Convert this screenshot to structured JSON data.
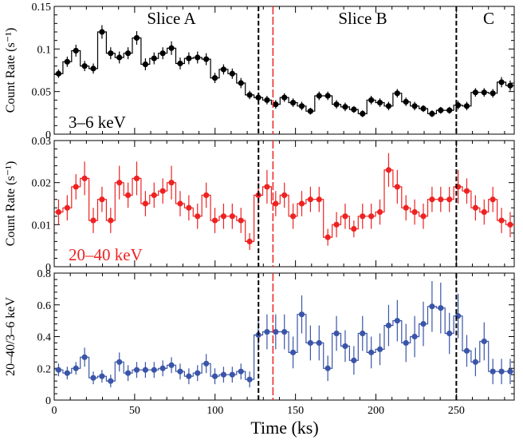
{
  "chart_data": [
    {
      "type": "step",
      "ylabel": "Count Rate (s⁻¹)",
      "ylim": [
        0,
        0.15
      ],
      "yticks": [
        "0",
        "0.05",
        "0.1",
        "0.15"
      ],
      "band_label": "3–6 keV",
      "color": "#000000",
      "slice_labels": [
        "Slice A",
        "Slice B",
        "C"
      ],
      "series": [
        {
          "x": [
            2.7,
            8.1,
            13.5,
            18.9,
            24.3,
            29.7,
            35.1,
            40.5,
            45.9,
            51.3,
            56.7,
            62.1,
            67.5,
            72.9,
            78.3,
            83.7,
            89.1,
            94.5,
            99.9,
            105.3,
            110.7,
            116.1,
            121.5,
            126.9,
            132.3,
            137.7,
            143.1,
            148.5,
            153.9,
            159.3,
            164.7,
            170.1,
            175.5,
            180.9,
            186.3,
            191.7,
            197.1,
            202.5,
            207.9,
            213.3,
            218.7,
            224.1,
            229.5,
            234.9,
            240.3,
            245.7,
            251.1,
            256.5,
            261.9,
            267.3,
            272.7,
            278.1,
            283.5
          ],
          "y": [
            0.071,
            0.085,
            0.098,
            0.08,
            0.077,
            0.12,
            0.095,
            0.09,
            0.095,
            0.113,
            0.082,
            0.089,
            0.095,
            0.101,
            0.083,
            0.089,
            0.09,
            0.088,
            0.066,
            0.076,
            0.071,
            0.06,
            0.046,
            0.043,
            0.04,
            0.035,
            0.043,
            0.037,
            0.033,
            0.027,
            0.045,
            0.045,
            0.035,
            0.032,
            0.029,
            0.024,
            0.04,
            0.037,
            0.033,
            0.048,
            0.038,
            0.033,
            0.03,
            0.024,
            0.028,
            0.028,
            0.034,
            0.033,
            0.049,
            0.049,
            0.048,
            0.061,
            0.057
          ],
          "err": [
            0.005,
            0.006,
            0.007,
            0.006,
            0.006,
            0.008,
            0.007,
            0.007,
            0.007,
            0.008,
            0.007,
            0.007,
            0.007,
            0.008,
            0.007,
            0.007,
            0.007,
            0.007,
            0.006,
            0.006,
            0.006,
            0.006,
            0.005,
            0.005,
            0.005,
            0.005,
            0.005,
            0.005,
            0.005,
            0.004,
            0.005,
            0.005,
            0.005,
            0.005,
            0.004,
            0.004,
            0.005,
            0.005,
            0.005,
            0.005,
            0.005,
            0.005,
            0.004,
            0.004,
            0.004,
            0.004,
            0.005,
            0.005,
            0.005,
            0.005,
            0.005,
            0.006,
            0.006
          ]
        }
      ]
    },
    {
      "type": "step",
      "ylabel": "Count Rate (s⁻¹)",
      "ylim": [
        0,
        0.03
      ],
      "yticks": [
        "0",
        "0.01",
        "0.02",
        "0.03"
      ],
      "band_label": "20–40 keV",
      "color": "#ee2222",
      "series": [
        {
          "x": [
            2.7,
            8.1,
            13.5,
            18.9,
            24.3,
            29.7,
            35.1,
            40.5,
            45.9,
            51.3,
            56.7,
            62.1,
            67.5,
            72.9,
            78.3,
            83.7,
            89.1,
            94.5,
            99.9,
            105.3,
            110.7,
            116.1,
            121.5,
            126.9,
            132.3,
            137.7,
            143.1,
            148.5,
            153.9,
            159.3,
            164.7,
            170.1,
            175.5,
            180.9,
            186.3,
            191.7,
            197.1,
            202.5,
            207.9,
            213.3,
            218.7,
            224.1,
            229.5,
            234.9,
            240.3,
            245.7,
            251.1,
            256.5,
            261.9,
            267.3,
            272.7,
            278.1,
            283.5
          ],
          "y": [
            0.013,
            0.014,
            0.019,
            0.021,
            0.011,
            0.016,
            0.011,
            0.02,
            0.017,
            0.021,
            0.015,
            0.017,
            0.018,
            0.02,
            0.015,
            0.014,
            0.012,
            0.017,
            0.011,
            0.012,
            0.012,
            0.011,
            0.006,
            0.017,
            0.019,
            0.015,
            0.017,
            0.012,
            0.015,
            0.016,
            0.016,
            0.007,
            0.01,
            0.012,
            0.009,
            0.012,
            0.012,
            0.013,
            0.023,
            0.019,
            0.014,
            0.013,
            0.012,
            0.016,
            0.016,
            0.016,
            0.019,
            0.018,
            0.014,
            0.013,
            0.016,
            0.011,
            0.01
          ],
          "err": [
            0.003,
            0.003,
            0.003,
            0.004,
            0.003,
            0.003,
            0.003,
            0.004,
            0.003,
            0.004,
            0.003,
            0.003,
            0.003,
            0.004,
            0.003,
            0.003,
            0.003,
            0.003,
            0.003,
            0.003,
            0.003,
            0.003,
            0.002,
            0.003,
            0.004,
            0.003,
            0.003,
            0.003,
            0.003,
            0.003,
            0.003,
            0.002,
            0.003,
            0.003,
            0.002,
            0.003,
            0.003,
            0.003,
            0.004,
            0.004,
            0.003,
            0.003,
            0.003,
            0.003,
            0.003,
            0.003,
            0.004,
            0.003,
            0.003,
            0.003,
            0.003,
            0.003,
            0.003
          ]
        }
      ]
    },
    {
      "type": "step",
      "ylabel": "20–40/3–6 keV",
      "ylim": [
        0,
        0.8
      ],
      "yticks": [
        "0",
        "0.2",
        "0.4",
        "0.6",
        "0.8"
      ],
      "color": "#3a55a8",
      "xlabel": "Time (ks)",
      "xlim": [
        0,
        286
      ],
      "xticks": [
        "0",
        "50",
        "100",
        "150",
        "200",
        "250"
      ],
      "series": [
        {
          "x": [
            2.7,
            8.1,
            13.5,
            18.9,
            24.3,
            29.7,
            35.1,
            40.5,
            45.9,
            51.3,
            56.7,
            62.1,
            67.5,
            72.9,
            78.3,
            83.7,
            89.1,
            94.5,
            99.9,
            105.3,
            110.7,
            116.1,
            121.5,
            126.9,
            132.3,
            137.7,
            143.1,
            148.5,
            153.9,
            159.3,
            164.7,
            170.1,
            175.5,
            180.9,
            186.3,
            191.7,
            197.1,
            202.5,
            207.9,
            213.3,
            218.7,
            224.1,
            229.5,
            234.9,
            240.3,
            245.7,
            251.1,
            256.5,
            261.9,
            267.3,
            272.7,
            278.1,
            283.5
          ],
          "y": [
            0.19,
            0.17,
            0.2,
            0.27,
            0.14,
            0.15,
            0.12,
            0.24,
            0.17,
            0.19,
            0.19,
            0.19,
            0.2,
            0.22,
            0.18,
            0.15,
            0.17,
            0.23,
            0.15,
            0.16,
            0.16,
            0.18,
            0.13,
            0.41,
            0.43,
            0.43,
            0.43,
            0.3,
            0.54,
            0.36,
            0.36,
            0.2,
            0.42,
            0.34,
            0.25,
            0.42,
            0.3,
            0.32,
            0.47,
            0.5,
            0.36,
            0.4,
            0.48,
            0.59,
            0.58,
            0.42,
            0.53,
            0.31,
            0.24,
            0.37,
            0.18,
            0.18,
            0.18
          ],
          "err": [
            0.04,
            0.04,
            0.04,
            0.06,
            0.04,
            0.04,
            0.04,
            0.06,
            0.05,
            0.05,
            0.05,
            0.05,
            0.05,
            0.05,
            0.05,
            0.05,
            0.05,
            0.06,
            0.05,
            0.05,
            0.05,
            0.05,
            0.05,
            0.1,
            0.11,
            0.11,
            0.11,
            0.1,
            0.12,
            0.11,
            0.11,
            0.08,
            0.11,
            0.1,
            0.09,
            0.11,
            0.1,
            0.1,
            0.13,
            0.13,
            0.12,
            0.13,
            0.14,
            0.16,
            0.16,
            0.13,
            0.14,
            0.1,
            0.09,
            0.12,
            0.08,
            0.08,
            0.08
          ]
        }
      ]
    }
  ],
  "markers": {
    "black_lines": [
      127,
      250
    ],
    "red_line": 136,
    "black_color": "#000000",
    "red_color": "#ee2222"
  }
}
